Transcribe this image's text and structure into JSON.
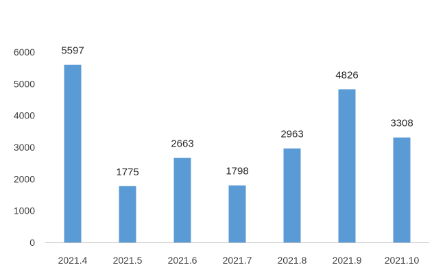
{
  "chart_data": {
    "type": "bar",
    "categories": [
      "2021.4",
      "2021.5",
      "2021.6",
      "2021.7",
      "2021.8",
      "2021.9",
      "2021.10"
    ],
    "values": [
      5597,
      1775,
      2663,
      1798,
      2963,
      4826,
      3308
    ],
    "title": "",
    "xlabel": "",
    "ylabel": "",
    "ylim": [
      0,
      6000
    ],
    "yticks": [
      0,
      1000,
      2000,
      3000,
      4000,
      5000,
      6000
    ],
    "grid": false,
    "legend": "none",
    "data_labels": true,
    "colors": {
      "bar": "#5B9BD5",
      "axis": "#BFBFBF",
      "text": "#404040",
      "label": "#262626",
      "background": "#FFFFFF"
    }
  }
}
